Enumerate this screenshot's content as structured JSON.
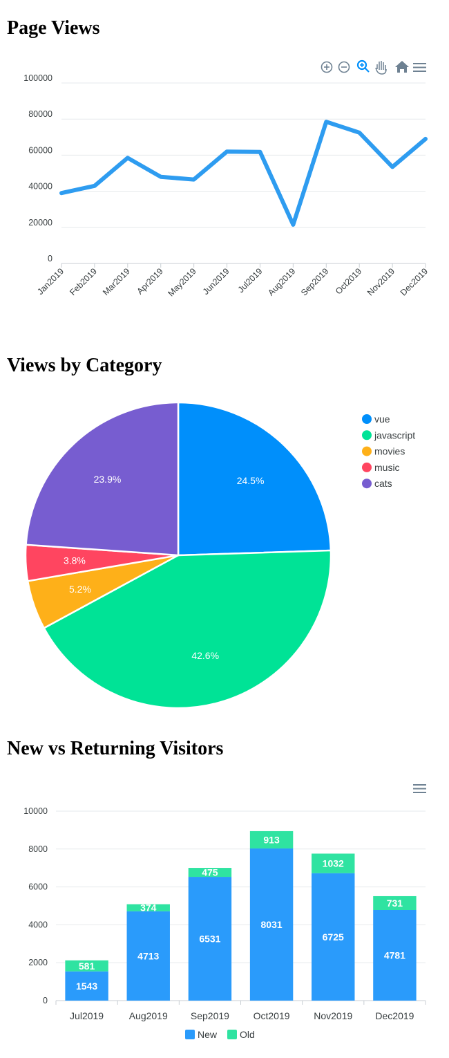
{
  "sections": {
    "page_views_title": "Page Views",
    "category_title": "Views by Category",
    "visitors_title": "New vs Returning Visitors"
  },
  "toolbar_icons": [
    "zoom-in-icon",
    "zoom-out-icon",
    "zoom-selection-icon",
    "pan-icon",
    "reset-home-icon",
    "menu-icon"
  ],
  "chart_data": [
    {
      "type": "line",
      "title": "Page Views",
      "x": [
        "Jan2019",
        "Feb2019",
        "Mar2019",
        "Apr2019",
        "May2019",
        "Jun2019",
        "Jul2019",
        "Aug2019",
        "Sep2019",
        "Oct2019",
        "Nov2019",
        "Dec2019"
      ],
      "series": [
        {
          "values": [
            39000,
            43000,
            58500,
            48000,
            46500,
            62000,
            61800,
            21500,
            78500,
            72500,
            53500,
            69000
          ]
        }
      ],
      "y_ticks": [
        0,
        20000,
        40000,
        60000,
        80000,
        100000
      ],
      "ylim": [
        0,
        100000
      ],
      "grid": true,
      "color": "#2E9CF0"
    },
    {
      "type": "pie",
      "title": "Views by Category",
      "slices": [
        {
          "label": "vue",
          "value": 24.5,
          "display": "24.5%",
          "color": "#008FFB"
        },
        {
          "label": "javascript",
          "value": 42.6,
          "display": "42.6%",
          "color": "#00E396"
        },
        {
          "label": "movies",
          "value": 5.2,
          "display": "5.2%",
          "color": "#FEB019"
        },
        {
          "label": "music",
          "value": 3.8,
          "display": "3.8%",
          "color": "#FF4560"
        },
        {
          "label": "cats",
          "value": 23.9,
          "display": "23.9%",
          "color": "#775DD0"
        }
      ],
      "legend_position": "top-right"
    },
    {
      "type": "bar",
      "stacked": true,
      "title": "New vs Returning Visitors",
      "categories": [
        "Jul2019",
        "Aug2019",
        "Sep2019",
        "Oct2019",
        "Nov2019",
        "Dec2019"
      ],
      "series": [
        {
          "name": "New",
          "values": [
            1543,
            4713,
            6531,
            8031,
            6725,
            4781
          ],
          "color": "#2A9BFB"
        },
        {
          "name": "Old",
          "values": [
            581,
            374,
            475,
            913,
            1032,
            731
          ],
          "color": "#2FE3A1"
        }
      ],
      "y_ticks": [
        0,
        2000,
        4000,
        6000,
        8000,
        10000
      ],
      "ylim": [
        0,
        10000
      ],
      "grid": true,
      "legend_position": "bottom"
    }
  ]
}
